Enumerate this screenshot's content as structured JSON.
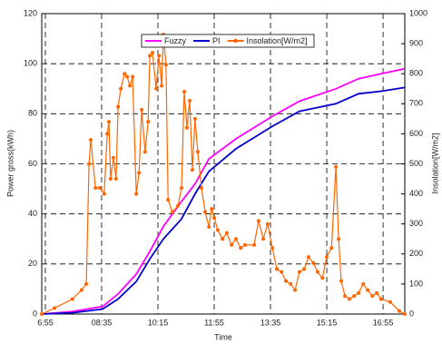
{
  "chart_data": {
    "type": "line",
    "xlabel": "Time",
    "ylabel": "Power gross(kWh)",
    "y2label": "Insolation[W/m2]",
    "xlim": [
      6.81,
      17.56
    ],
    "xticks": [
      {
        "value": 6.9167,
        "label": "6:55"
      },
      {
        "value": 8.5833,
        "label": "08:35"
      },
      {
        "value": 10.25,
        "label": "10:15"
      },
      {
        "value": 11.9167,
        "label": "11:55"
      },
      {
        "value": 13.5833,
        "label": "13:35"
      },
      {
        "value": 15.25,
        "label": "15:15"
      },
      {
        "value": 16.9167,
        "label": "16:55"
      }
    ],
    "ylim": [
      0,
      120
    ],
    "yticks": [
      0,
      20,
      40,
      60,
      80,
      100,
      120
    ],
    "y2lim": [
      0,
      1000
    ],
    "y2ticks": [
      0,
      100,
      200,
      300,
      400,
      500,
      600,
      700,
      800,
      900,
      1000
    ],
    "grid": true,
    "legend": "upper center",
    "series": [
      {
        "name": "Fuzzy",
        "color": "#ff00ff",
        "markers": false,
        "x": [
          6.81,
          7.72,
          8.61,
          9.07,
          9.61,
          10.01,
          10.41,
          10.95,
          11.35,
          11.76,
          12.56,
          13.64,
          14.44,
          15.52,
          16.19,
          16.86,
          17.56
        ],
        "values": [
          0,
          1,
          3,
          8,
          16,
          25,
          35,
          45,
          52,
          62,
          70,
          79,
          85,
          90,
          94,
          96,
          98
        ]
      },
      {
        "name": "PI",
        "color": "#0000cc",
        "markers": false,
        "x": [
          6.81,
          7.72,
          8.61,
          9.07,
          9.61,
          10.01,
          10.41,
          10.95,
          11.35,
          11.76,
          12.56,
          13.64,
          14.44,
          15.52,
          16.19,
          16.86,
          17.56
        ],
        "values": [
          0,
          0.5,
          2,
          6,
          13,
          22,
          30,
          38,
          48,
          57,
          66,
          75,
          81,
          84,
          88,
          89,
          90.5
        ]
      },
      {
        "name": "Insolation[W/m2]",
        "color": "#ff6600",
        "markers": true,
        "axis": "y2",
        "x": [
          6.81,
          7.19,
          7.72,
          7.99,
          8.13,
          8.21,
          8.26,
          8.4,
          8.53,
          8.66,
          8.75,
          8.8,
          8.85,
          8.93,
          9.01,
          9.07,
          9.15,
          9.26,
          9.34,
          9.42,
          9.5,
          9.61,
          9.69,
          9.77,
          9.87,
          9.96,
          10.01,
          10.09,
          10.2,
          10.28,
          10.36,
          10.41,
          10.49,
          10.55,
          10.68,
          10.84,
          10.95,
          11.03,
          11.11,
          11.19,
          11.27,
          11.35,
          11.43,
          11.54,
          11.65,
          11.76,
          11.84,
          11.92,
          12.02,
          12.16,
          12.29,
          12.43,
          12.56,
          12.7,
          12.83,
          13.1,
          13.23,
          13.37,
          13.5,
          13.64,
          13.77,
          13.91,
          14.04,
          14.18,
          14.31,
          14.44,
          14.58,
          14.71,
          14.85,
          14.98,
          15.12,
          15.25,
          15.39,
          15.52,
          15.6,
          15.68,
          15.79,
          15.92,
          16.06,
          16.19,
          16.33,
          16.46,
          16.6,
          16.73,
          16.86,
          17.13,
          17.4,
          17.56
        ],
        "values": [
          0,
          20,
          50,
          80,
          100,
          500,
          580,
          420,
          420,
          400,
          600,
          640,
          450,
          520,
          450,
          690,
          750,
          800,
          790,
          760,
          790,
          400,
          470,
          680,
          540,
          640,
          860,
          870,
          750,
          860,
          760,
          930,
          830,
          380,
          340,
          360,
          420,
          740,
          620,
          710,
          480,
          650,
          540,
          420,
          340,
          290,
          350,
          320,
          280,
          250,
          270,
          230,
          250,
          220,
          230,
          230,
          310,
          250,
          300,
          220,
          150,
          140,
          110,
          100,
          80,
          140,
          150,
          190,
          170,
          140,
          120,
          190,
          220,
          490,
          250,
          110,
          60,
          50,
          60,
          70,
          100,
          80,
          60,
          70,
          50,
          40,
          10,
          0
        ]
      }
    ]
  }
}
